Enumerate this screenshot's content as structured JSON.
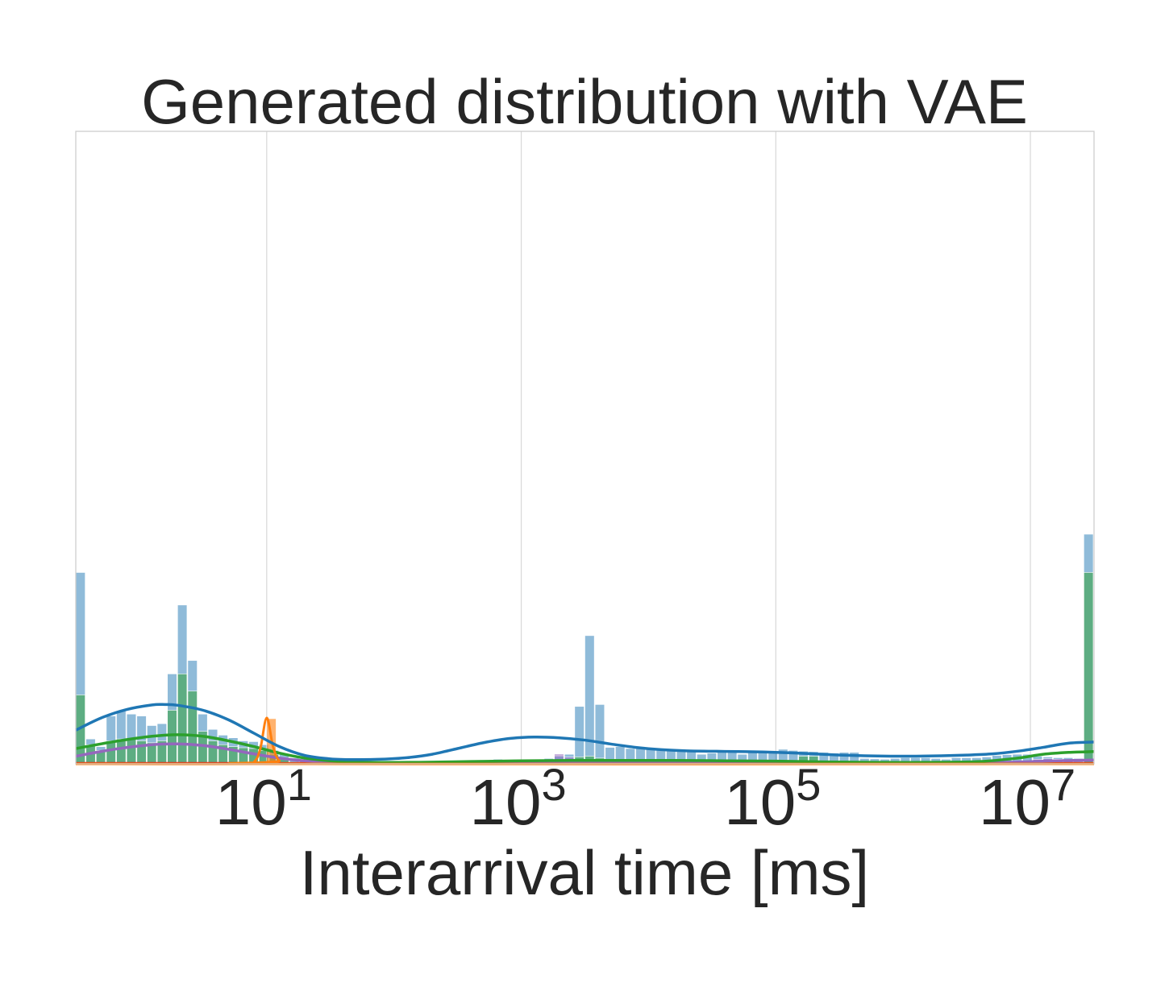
{
  "chart_data": {
    "type": "histogram",
    "title": "Generated distribution with VAE",
    "xlabel": "Interarrival time [ms]",
    "ylabel": "",
    "x_scale": "log",
    "xlim_log10": [
      -0.5,
      7.5
    ],
    "ylim": [
      0,
      1
    ],
    "grid": "vertical",
    "x_ticks": [
      {
        "base": "10",
        "exp": "1",
        "log10": 1
      },
      {
        "base": "10",
        "exp": "3",
        "log10": 3
      },
      {
        "base": "10",
        "exp": "5",
        "log10": 5
      },
      {
        "base": "10",
        "exp": "7",
        "log10": 7
      }
    ],
    "colors": {
      "blue": "#1f77b4",
      "orange": "#ff7f0e",
      "green": "#2ca02c",
      "red": "#d62728",
      "purple": "#9467bd",
      "teal_overlap": "#4f9a96"
    },
    "bin_width_log10": 0.08,
    "series": [
      {
        "name": "blue",
        "color": "#1f77b4",
        "bins": [
          {
            "x": -0.5,
            "h": 0.5
          },
          {
            "x": -0.42,
            "h": 0.065
          },
          {
            "x": -0.34,
            "h": 0.045
          },
          {
            "x": -0.26,
            "h": 0.125
          },
          {
            "x": -0.18,
            "h": 0.138
          },
          {
            "x": -0.1,
            "h": 0.13
          },
          {
            "x": -0.02,
            "h": 0.125
          },
          {
            "x": 0.06,
            "h": 0.1
          },
          {
            "x": 0.14,
            "h": 0.105
          },
          {
            "x": 0.22,
            "h": 0.235
          },
          {
            "x": 0.3,
            "h": 0.415
          },
          {
            "x": 0.38,
            "h": 0.27
          },
          {
            "x": 0.46,
            "h": 0.13
          },
          {
            "x": 0.54,
            "h": 0.09
          },
          {
            "x": 0.62,
            "h": 0.075
          },
          {
            "x": 0.7,
            "h": 0.068
          },
          {
            "x": 0.78,
            "h": 0.06
          },
          {
            "x": 0.86,
            "h": 0.058
          },
          {
            "x": 0.94,
            "h": 0.05
          },
          {
            "x": 1.02,
            "h": 0.035
          },
          {
            "x": 1.1,
            "h": 0.025
          },
          {
            "x": 1.18,
            "h": 0.015
          },
          {
            "x": 1.26,
            "h": 0.01
          },
          {
            "x": 1.34,
            "h": 0.008
          },
          {
            "x": 1.42,
            "h": 0.006
          },
          {
            "x": 1.5,
            "h": 0.005
          },
          {
            "x": 1.58,
            "h": 0.004
          },
          {
            "x": 1.66,
            "h": 0.004
          },
          {
            "x": 1.74,
            "h": 0.004
          },
          {
            "x": 1.82,
            "h": 0.003
          },
          {
            "x": 1.9,
            "h": 0.004
          },
          {
            "x": 1.98,
            "h": 0.005
          },
          {
            "x": 2.06,
            "h": 0.005
          },
          {
            "x": 2.14,
            "h": 0.006
          },
          {
            "x": 2.22,
            "h": 0.004
          },
          {
            "x": 2.3,
            "h": 0.004
          },
          {
            "x": 2.38,
            "h": 0.003
          },
          {
            "x": 2.46,
            "h": 0.008
          },
          {
            "x": 2.54,
            "h": 0.005
          },
          {
            "x": 2.62,
            "h": 0.006
          },
          {
            "x": 2.7,
            "h": 0.007
          },
          {
            "x": 2.78,
            "h": 0.012
          },
          {
            "x": 2.86,
            "h": 0.008
          },
          {
            "x": 2.94,
            "h": 0.009
          },
          {
            "x": 3.02,
            "h": 0.012
          },
          {
            "x": 3.1,
            "h": 0.012
          },
          {
            "x": 3.18,
            "h": 0.014
          },
          {
            "x": 3.26,
            "h": 0.02
          },
          {
            "x": 3.34,
            "h": 0.025
          },
          {
            "x": 3.42,
            "h": 0.15
          },
          {
            "x": 3.5,
            "h": 0.335
          },
          {
            "x": 3.58,
            "h": 0.155
          },
          {
            "x": 3.66,
            "h": 0.043
          },
          {
            "x": 3.74,
            "h": 0.045
          },
          {
            "x": 3.82,
            "h": 0.04
          },
          {
            "x": 3.9,
            "h": 0.045
          },
          {
            "x": 3.98,
            "h": 0.04
          },
          {
            "x": 4.06,
            "h": 0.037
          },
          {
            "x": 4.14,
            "h": 0.035
          },
          {
            "x": 4.22,
            "h": 0.033
          },
          {
            "x": 4.3,
            "h": 0.037
          },
          {
            "x": 4.38,
            "h": 0.025
          },
          {
            "x": 4.46,
            "h": 0.028
          },
          {
            "x": 4.54,
            "h": 0.032
          },
          {
            "x": 4.62,
            "h": 0.03
          },
          {
            "x": 4.7,
            "h": 0.025
          },
          {
            "x": 4.78,
            "h": 0.032
          },
          {
            "x": 4.86,
            "h": 0.03
          },
          {
            "x": 4.94,
            "h": 0.028
          },
          {
            "x": 5.02,
            "h": 0.038
          },
          {
            "x": 5.1,
            "h": 0.035
          },
          {
            "x": 5.18,
            "h": 0.033
          },
          {
            "x": 5.26,
            "h": 0.032
          },
          {
            "x": 5.34,
            "h": 0.03
          },
          {
            "x": 5.42,
            "h": 0.028
          },
          {
            "x": 5.5,
            "h": 0.03
          },
          {
            "x": 5.58,
            "h": 0.03
          },
          {
            "x": 5.66,
            "h": 0.014
          },
          {
            "x": 5.74,
            "h": 0.013
          },
          {
            "x": 5.82,
            "h": 0.012
          },
          {
            "x": 5.9,
            "h": 0.014
          },
          {
            "x": 5.98,
            "h": 0.016
          },
          {
            "x": 6.06,
            "h": 0.016
          },
          {
            "x": 6.14,
            "h": 0.016
          },
          {
            "x": 6.22,
            "h": 0.014
          },
          {
            "x": 6.3,
            "h": 0.012
          },
          {
            "x": 6.38,
            "h": 0.016
          },
          {
            "x": 6.46,
            "h": 0.016
          },
          {
            "x": 6.54,
            "h": 0.016
          },
          {
            "x": 6.62,
            "h": 0.018
          },
          {
            "x": 6.7,
            "h": 0.022
          },
          {
            "x": 6.78,
            "h": 0.024
          },
          {
            "x": 6.86,
            "h": 0.025
          },
          {
            "x": 6.94,
            "h": 0.025
          },
          {
            "x": 7.02,
            "h": 0.02
          },
          {
            "x": 7.1,
            "h": 0.018
          },
          {
            "x": 7.18,
            "h": 0.016
          },
          {
            "x": 7.26,
            "h": 0.016
          },
          {
            "x": 7.34,
            "h": 0.014
          },
          {
            "x": 7.42,
            "h": 0.6
          }
        ],
        "kde": [
          [
            -0.5,
            0.088
          ],
          [
            -0.3,
            0.12
          ],
          [
            -0.1,
            0.142
          ],
          [
            0.1,
            0.154
          ],
          [
            0.2,
            0.155
          ],
          [
            0.3,
            0.153
          ],
          [
            0.5,
            0.14
          ],
          [
            0.7,
            0.115
          ],
          [
            0.9,
            0.08
          ],
          [
            1.1,
            0.045
          ],
          [
            1.3,
            0.022
          ],
          [
            1.5,
            0.013
          ],
          [
            1.7,
            0.011
          ],
          [
            1.9,
            0.012
          ],
          [
            2.1,
            0.016
          ],
          [
            2.3,
            0.025
          ],
          [
            2.5,
            0.04
          ],
          [
            2.7,
            0.055
          ],
          [
            2.9,
            0.066
          ],
          [
            3.1,
            0.07
          ],
          [
            3.3,
            0.068
          ],
          [
            3.5,
            0.062
          ],
          [
            3.7,
            0.052
          ],
          [
            3.9,
            0.043
          ],
          [
            4.1,
            0.037
          ],
          [
            4.3,
            0.034
          ],
          [
            4.5,
            0.033
          ],
          [
            4.7,
            0.032
          ],
          [
            4.9,
            0.031
          ],
          [
            5.1,
            0.029
          ],
          [
            5.3,
            0.026
          ],
          [
            5.5,
            0.023
          ],
          [
            5.7,
            0.021
          ],
          [
            5.9,
            0.02
          ],
          [
            6.1,
            0.02
          ],
          [
            6.3,
            0.021
          ],
          [
            6.5,
            0.023
          ],
          [
            6.7,
            0.026
          ],
          [
            6.9,
            0.033
          ],
          [
            7.1,
            0.043
          ],
          [
            7.3,
            0.054
          ],
          [
            7.5,
            0.057
          ]
        ]
      },
      {
        "name": "green",
        "color": "#2ca02c",
        "bins": [
          {
            "x": -0.5,
            "h": 0.18
          },
          {
            "x": -0.42,
            "h": 0.05
          },
          {
            "x": -0.34,
            "h": 0.035
          },
          {
            "x": -0.26,
            "h": 0.06
          },
          {
            "x": -0.18,
            "h": 0.065
          },
          {
            "x": -0.1,
            "h": 0.065
          },
          {
            "x": -0.02,
            "h": 0.06
          },
          {
            "x": 0.06,
            "h": 0.055
          },
          {
            "x": 0.14,
            "h": 0.06
          },
          {
            "x": 0.22,
            "h": 0.14
          },
          {
            "x": 0.3,
            "h": 0.235
          },
          {
            "x": 0.38,
            "h": 0.19
          },
          {
            "x": 0.46,
            "h": 0.085
          },
          {
            "x": 0.54,
            "h": 0.06
          },
          {
            "x": 0.62,
            "h": 0.05
          },
          {
            "x": 0.7,
            "h": 0.045
          },
          {
            "x": 0.78,
            "h": 0.042
          },
          {
            "x": 0.86,
            "h": 0.04
          },
          {
            "x": 0.94,
            "h": 0.035
          },
          {
            "x": 1.02,
            "h": 0.025
          },
          {
            "x": 1.1,
            "h": 0.012
          },
          {
            "x": 3.42,
            "h": 0.018
          },
          {
            "x": 3.5,
            "h": 0.02
          },
          {
            "x": 3.58,
            "h": 0.015
          },
          {
            "x": 5.18,
            "h": 0.02
          },
          {
            "x": 5.26,
            "h": 0.02
          },
          {
            "x": 7.42,
            "h": 0.5
          }
        ],
        "kde": [
          [
            -0.5,
            0.04
          ],
          [
            -0.2,
            0.058
          ],
          [
            0.1,
            0.072
          ],
          [
            0.3,
            0.076
          ],
          [
            0.5,
            0.072
          ],
          [
            0.7,
            0.06
          ],
          [
            0.9,
            0.045
          ],
          [
            1.1,
            0.028
          ],
          [
            1.3,
            0.015
          ],
          [
            1.5,
            0.008
          ],
          [
            1.8,
            0.004
          ],
          [
            2.2,
            0.004
          ],
          [
            2.6,
            0.006
          ],
          [
            3.0,
            0.008
          ],
          [
            3.4,
            0.009
          ],
          [
            3.8,
            0.009
          ],
          [
            4.2,
            0.009
          ],
          [
            4.6,
            0.008
          ],
          [
            5.0,
            0.007
          ],
          [
            5.4,
            0.005
          ],
          [
            5.8,
            0.004
          ],
          [
            6.2,
            0.004
          ],
          [
            6.6,
            0.006
          ],
          [
            6.9,
            0.015
          ],
          [
            7.1,
            0.025
          ],
          [
            7.3,
            0.03
          ],
          [
            7.5,
            0.032
          ]
        ]
      },
      {
        "name": "purple",
        "color": "#9467bd",
        "bins": [
          {
            "x": 3.26,
            "h": 0.026
          },
          {
            "x": 3.34,
            "h": 0.018
          },
          {
            "x": 7.02,
            "h": 0.012
          },
          {
            "x": 7.1,
            "h": 0.014
          },
          {
            "x": 7.18,
            "h": 0.012
          },
          {
            "x": 7.26,
            "h": 0.01
          }
        ],
        "kde": [
          [
            -0.5,
            0.02
          ],
          [
            -0.2,
            0.038
          ],
          [
            0.1,
            0.05
          ],
          [
            0.3,
            0.052
          ],
          [
            0.5,
            0.048
          ],
          [
            0.7,
            0.038
          ],
          [
            0.9,
            0.026
          ],
          [
            1.1,
            0.015
          ],
          [
            1.3,
            0.008
          ],
          [
            1.6,
            0.004
          ],
          [
            2.0,
            0.002
          ],
          [
            3.0,
            0.002
          ],
          [
            4.0,
            0.002
          ],
          [
            5.0,
            0.002
          ],
          [
            6.0,
            0.002
          ],
          [
            6.8,
            0.004
          ],
          [
            7.2,
            0.008
          ],
          [
            7.5,
            0.01
          ]
        ]
      },
      {
        "name": "orange",
        "color": "#ff7f0e",
        "bins": [
          {
            "x": 1.0,
            "h": 0.118
          }
        ],
        "kde": [
          [
            -0.5,
            0.0
          ],
          [
            0.8,
            0.0
          ],
          [
            0.9,
            0.005
          ],
          [
            0.95,
            0.04
          ],
          [
            1.0,
            0.12
          ],
          [
            1.05,
            0.045
          ],
          [
            1.1,
            0.008
          ],
          [
            1.2,
            0.0
          ],
          [
            7.5,
            0.0
          ]
        ]
      },
      {
        "name": "red",
        "color": "#d62728",
        "bins": [
          {
            "x": 0.94,
            "h": 0.004
          },
          {
            "x": 1.02,
            "h": 0.004
          }
        ],
        "kde": [
          [
            -0.5,
            0.001
          ],
          [
            7.5,
            0.001
          ]
        ]
      }
    ]
  }
}
